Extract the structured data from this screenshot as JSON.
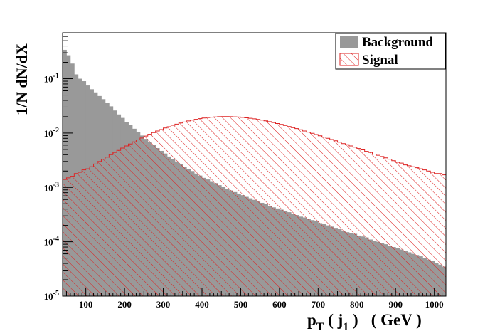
{
  "chart_data": {
    "type": "histogram",
    "xlabel": {
      "main": "p",
      "sub": "T",
      "open": " ( j",
      "sub2": "1",
      "close": " )",
      "unit": "( GeV )"
    },
    "ylabel": "1/N dN/dX",
    "xlim": [
      40,
      1030
    ],
    "ylim": [
      1e-05,
      0.7
    ],
    "y_scale": "log",
    "x_ticks": [
      100,
      200,
      300,
      400,
      500,
      600,
      700,
      800,
      900,
      1000
    ],
    "y_ticks": [
      {
        "value": 1e-05,
        "base": "10",
        "exp": "-5"
      },
      {
        "value": 0.0001,
        "base": "10",
        "exp": "-4"
      },
      {
        "value": 0.001,
        "base": "10",
        "exp": "-3"
      },
      {
        "value": 0.01,
        "base": "10",
        "exp": "-2"
      },
      {
        "value": 0.1,
        "base": "10",
        "exp": "-1"
      }
    ],
    "legend": {
      "position": "top-right"
    },
    "bin_width": 10,
    "x_start": 40,
    "series": [
      {
        "name": "Background",
        "color": "#999999",
        "values": [
          0.34,
          0.27,
          0.19,
          0.12,
          0.1,
          0.09,
          0.075,
          0.064,
          0.056,
          0.048,
          0.042,
          0.036,
          0.031,
          0.026,
          0.022,
          0.019,
          0.016,
          0.014,
          0.012,
          0.0105,
          0.009,
          0.0078,
          0.0068,
          0.006,
          0.0053,
          0.0047,
          0.0042,
          0.0037,
          0.0033,
          0.003,
          0.0027,
          0.0024,
          0.0022,
          0.002,
          0.0018,
          0.00165,
          0.0015,
          0.0014,
          0.0013,
          0.0012,
          0.0011,
          0.00102,
          0.00095,
          0.00088,
          0.00082,
          0.00077,
          0.00072,
          0.00067,
          0.00063,
          0.00059,
          0.00055,
          0.00052,
          0.00049,
          0.00046,
          0.00043,
          0.00041,
          0.00039,
          0.00037,
          0.00035,
          0.00033,
          0.00031,
          0.00029,
          0.00028,
          0.00026,
          0.00025,
          0.00024,
          0.00022,
          0.00021,
          0.0002,
          0.00019,
          0.00018,
          0.00017,
          0.00016,
          0.00015,
          0.000145,
          0.00014,
          0.00013,
          0.000125,
          0.00012,
          0.00011,
          0.000105,
          0.0001,
          9.5e-05,
          9e-05,
          8.5e-05,
          8e-05,
          7.6e-05,
          7.2e-05,
          6.8e-05,
          6.4e-05,
          6e-05,
          5.7e-05,
          5.4e-05,
          5e-05,
          4.7e-05,
          4.4e-05,
          4.1e-05,
          3.8e-05,
          3.5e-05
        ]
      },
      {
        "name": "Signal",
        "color": "#dd2222",
        "values": [
          0.0014,
          0.0015,
          0.0016,
          0.0018,
          0.0019,
          0.0021,
          0.0022,
          0.0024,
          0.0027,
          0.003,
          0.0033,
          0.0036,
          0.004,
          0.0044,
          0.0048,
          0.0053,
          0.0058,
          0.0063,
          0.0069,
          0.0075,
          0.0081,
          0.0088,
          0.0095,
          0.0102,
          0.0109,
          0.0116,
          0.0124,
          0.0131,
          0.0139,
          0.0146,
          0.0153,
          0.016,
          0.0167,
          0.0173,
          0.0179,
          0.0184,
          0.0189,
          0.0193,
          0.0196,
          0.0198,
          0.02,
          0.0201,
          0.0201,
          0.02,
          0.0199,
          0.0197,
          0.0194,
          0.0191,
          0.0187,
          0.0183,
          0.0178,
          0.0173,
          0.0168,
          0.0162,
          0.0156,
          0.015,
          0.0144,
          0.0138,
          0.0132,
          0.0126,
          0.0121,
          0.0115,
          0.0109,
          0.0104,
          0.0099,
          0.0094,
          0.0089,
          0.0084,
          0.008,
          0.0076,
          0.0072,
          0.0068,
          0.0064,
          0.0061,
          0.0058,
          0.0055,
          0.0052,
          0.0049,
          0.0046,
          0.0044,
          0.0041,
          0.0039,
          0.0037,
          0.0035,
          0.0033,
          0.0031,
          0.0029,
          0.0028,
          0.0026,
          0.0025,
          0.0024,
          0.0023,
          0.0022,
          0.0021,
          0.002,
          0.0019,
          0.0018,
          0.0018,
          0.0017
        ]
      }
    ]
  }
}
